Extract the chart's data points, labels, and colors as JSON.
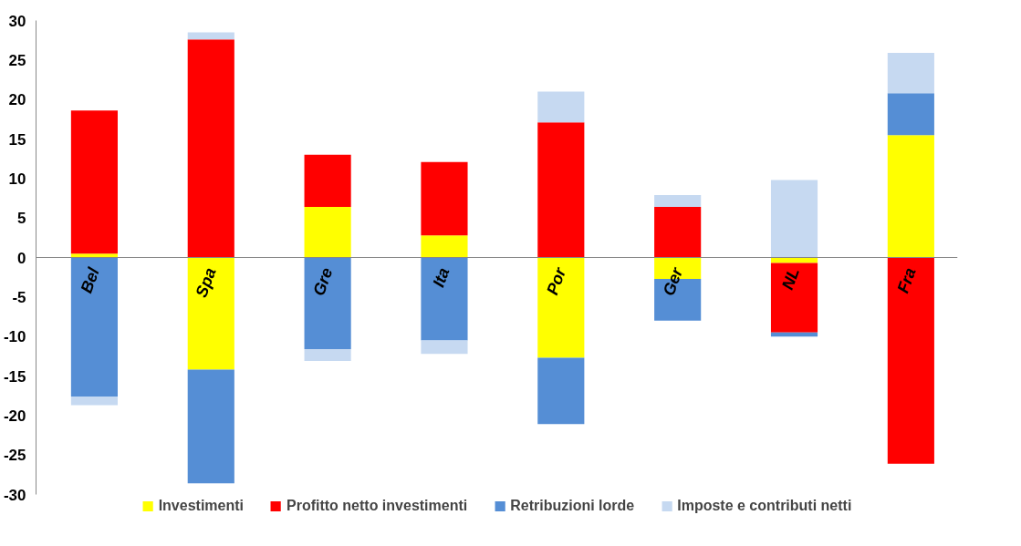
{
  "chart_data": {
    "type": "bar",
    "stacked": true,
    "categories": [
      "Bel",
      "Spa",
      "Gre",
      "Ita",
      "Por",
      "Ger",
      "NL",
      "Fra"
    ],
    "series": [
      {
        "name": "Investimenti",
        "color": "#ffff00",
        "values": [
          0.5,
          -14.2,
          6.4,
          2.8,
          -12.7,
          -2.7,
          -0.7,
          15.5
        ]
      },
      {
        "name": "Profitto netto investimenti",
        "color": "#ff0000",
        "values": [
          18.1,
          27.6,
          6.6,
          9.3,
          17.1,
          6.4,
          -8.8,
          -26.1
        ]
      },
      {
        "name": "Retribuzioni lorde",
        "color": "#558ed5",
        "values": [
          -17.6,
          -14.4,
          -11.6,
          -10.5,
          -8.4,
          -5.3,
          -0.5,
          5.3
        ]
      },
      {
        "name": "Imposte e contributi netti",
        "color": "#c6d9f1",
        "values": [
          -1.1,
          0.9,
          -1.5,
          -1.7,
          3.9,
          1.5,
          9.8,
          5.1
        ]
      }
    ],
    "ylim": [
      -30,
      30
    ],
    "yticks": [
      -30,
      -25,
      -20,
      -15,
      -10,
      -5,
      0,
      5,
      10,
      15,
      20,
      25,
      30
    ],
    "grid": false,
    "legend": "bottom"
  }
}
